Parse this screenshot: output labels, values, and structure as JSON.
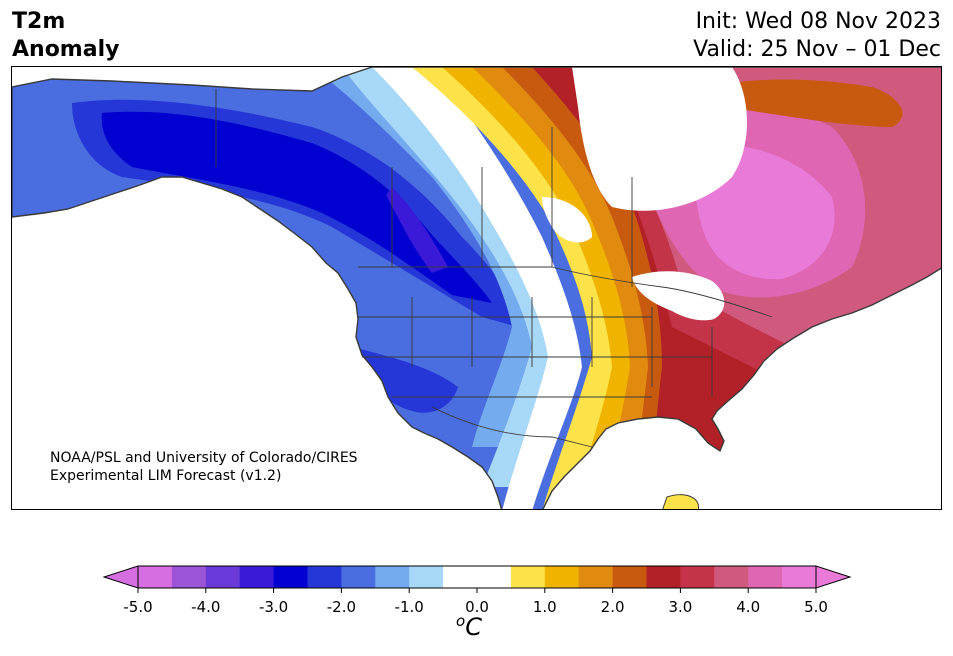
{
  "title": {
    "left_line1": "T2m",
    "left_line2": "Anomaly",
    "init": "Init: Wed 08 Nov 2023",
    "valid": "Valid: 25 Nov – 01 Dec"
  },
  "credit": {
    "line1": "NOAA/PSL and University of Colorado/CIRES",
    "line2": "Experimental LIM Forecast (v1.2)"
  },
  "colorbar": {
    "ticks": [
      "-5.0",
      "-4.0",
      "-3.0",
      "-2.0",
      "-1.0",
      "0.0",
      "1.0",
      "2.0",
      "3.0",
      "4.0",
      "5.0"
    ],
    "unit_sup": "o",
    "unit": "C",
    "colors": [
      "#d66de0",
      "#9b53d8",
      "#6a3ad8",
      "#3a1ad8",
      "#0000d0",
      "#2637d8",
      "#4a6de0",
      "#74aaee",
      "#a8d8f8",
      "#ffffff",
      "#ffffff",
      "#fde24a",
      "#f0b400",
      "#e08a10",
      "#c85a10",
      "#b22028",
      "#c43448",
      "#d05a7e",
      "#de66b2",
      "#e97ad8"
    ],
    "under_color": "#d66de0",
    "over_color": "#e97ad8"
  },
  "map_colors": {
    "c_neg1": "#a8d8f8",
    "c_neg15": "#74aaee",
    "c_neg2": "#4a6de0",
    "c_neg25": "#2637d8",
    "c_neg3": "#0000d0",
    "c_neg35": "#3a1ad8",
    "c_pos05": "#fde24a",
    "c_pos1": "#f0b400",
    "c_pos15": "#e08a10",
    "c_pos2": "#c85a10",
    "c_pos25": "#b22028",
    "c_pos3": "#c43448",
    "c_pos35": "#d05a7e",
    "c_pos4": "#de66b2",
    "c_pos45": "#e97ad8",
    "outline": "#3a3a3a"
  }
}
